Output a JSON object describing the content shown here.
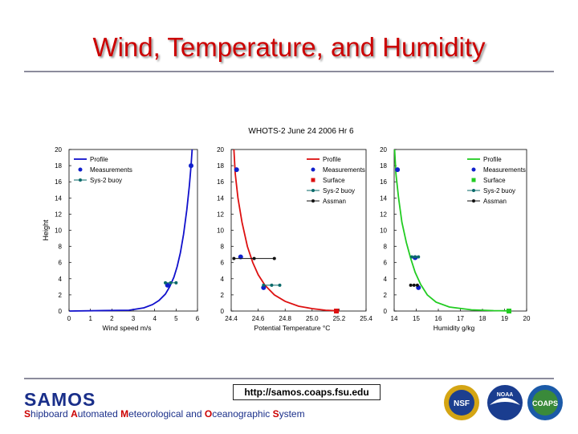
{
  "slide": {
    "title": "Wind, Temperature, and Humidity",
    "url": "http://samos.coaps.fsu.edu",
    "logo_name": "SAMOS",
    "tagline_parts": [
      {
        "initial": "S",
        "rest": "hipboard "
      },
      {
        "initial": "A",
        "rest": "utomated "
      },
      {
        "initial": "M",
        "rest": "eteorological and "
      },
      {
        "initial": "O",
        "rest": "ceanographic "
      },
      {
        "initial": "S",
        "rest": "ystem"
      }
    ],
    "partner_logos": [
      {
        "name": "nsf-logo",
        "text": "NSF"
      },
      {
        "name": "noaa-logo",
        "text": "NOAA"
      },
      {
        "name": "coaps-logo",
        "text": "COAPS"
      }
    ]
  },
  "figure_title": "WHOTS-2 June 24 2006 Hr 6",
  "colors": {
    "profile_wind": "#1010cc",
    "profile_red": "#dd1010",
    "profile_green": "#22cc22",
    "measurement": "#1020cc",
    "surface_red": "#dd1010",
    "surface_green": "#22cc22",
    "buoy": "#0a6a6a",
    "assman": "#111111"
  },
  "chart_data": [
    {
      "type": "line",
      "xlabel": "Wind speed m/s",
      "ylabel": "Height",
      "xlim": [
        0,
        6
      ],
      "ylim": [
        0,
        20
      ],
      "xticks": [
        "0",
        "1",
        "2",
        "3",
        "4",
        "5",
        "6"
      ],
      "yticks": [
        "0",
        "2",
        "4",
        "6",
        "8",
        "10",
        "12",
        "14",
        "16",
        "18",
        "20"
      ],
      "legend": {
        "position": "top-left",
        "entries": [
          "Profile",
          "Measurements",
          "Sys-2 buoy"
        ]
      },
      "series": [
        {
          "name": "Profile",
          "kind": "line",
          "color": "profile_wind",
          "points": [
            [
              0.02,
              0.0
            ],
            [
              2.8,
              0.1
            ],
            [
              3.5,
              0.4
            ],
            [
              3.9,
              0.8
            ],
            [
              4.2,
              1.3
            ],
            [
              4.5,
              2.1
            ],
            [
              4.7,
              3.0
            ],
            [
              4.9,
              4.2
            ],
            [
              5.05,
              5.5
            ],
            [
              5.2,
              7.2
            ],
            [
              5.35,
              9.5
            ],
            [
              5.5,
              12.5
            ],
            [
              5.62,
              15.5
            ],
            [
              5.7,
              18.0
            ],
            [
              5.75,
              20.0
            ]
          ]
        },
        {
          "name": "Measurements",
          "kind": "marker",
          "color": "measurement",
          "points": [
            [
              5.7,
              18.0
            ],
            [
              4.6,
              3.2
            ]
          ]
        },
        {
          "name": "Sys-2 buoy",
          "kind": "marker-line",
          "color": "buoy",
          "points": [
            [
              4.5,
              3.5
            ],
            [
              4.75,
              3.5
            ],
            [
              5.0,
              3.5
            ]
          ]
        }
      ]
    },
    {
      "type": "line",
      "xlabel": "Potential Temperature °C",
      "ylabel": "",
      "xlim": [
        24.4,
        25.4
      ],
      "ylim": [
        0,
        20
      ],
      "xticks": [
        "24.4",
        "24.6",
        "24.8",
        "25.0",
        "25.2",
        "25.4"
      ],
      "yticks": [
        "0",
        "2",
        "4",
        "6",
        "8",
        "10",
        "12",
        "14",
        "16",
        "18",
        "20"
      ],
      "legend": {
        "position": "top-right",
        "entries": [
          "Profile",
          "Measurements",
          "Surface",
          "Sys-2 buoy",
          "Assman"
        ]
      },
      "series": [
        {
          "name": "Profile",
          "kind": "line",
          "color": "profile_red",
          "points": [
            [
              24.42,
              20.0
            ],
            [
              24.43,
              17.0
            ],
            [
              24.45,
              14.0
            ],
            [
              24.48,
              11.0
            ],
            [
              24.52,
              8.0
            ],
            [
              24.56,
              6.0
            ],
            [
              24.6,
              4.5
            ],
            [
              24.65,
              3.2
            ],
            [
              24.72,
              2.0
            ],
            [
              24.8,
              1.2
            ],
            [
              24.9,
              0.6
            ],
            [
              25.0,
              0.3
            ],
            [
              25.1,
              0.1
            ],
            [
              25.2,
              0.02
            ]
          ]
        },
        {
          "name": "Measurements",
          "kind": "marker",
          "color": "measurement",
          "points": [
            [
              24.44,
              17.5
            ],
            [
              24.47,
              6.7
            ],
            [
              24.64,
              2.9
            ]
          ]
        },
        {
          "name": "Surface",
          "kind": "square",
          "color": "surface_red",
          "points": [
            [
              25.18,
              0.0
            ]
          ]
        },
        {
          "name": "Sys-2 buoy",
          "kind": "marker-line",
          "color": "buoy",
          "points": [
            [
              24.64,
              3.2
            ],
            [
              24.7,
              3.2
            ],
            [
              24.76,
              3.2
            ]
          ]
        },
        {
          "name": "Assman",
          "kind": "marker-line",
          "color": "assman",
          "points": [
            [
              24.42,
              6.5
            ],
            [
              24.57,
              6.5
            ],
            [
              24.72,
              6.5
            ]
          ]
        }
      ]
    },
    {
      "type": "line",
      "xlabel": "Humidity g/kg",
      "ylabel": "",
      "xlim": [
        14,
        20
      ],
      "ylim": [
        0,
        20
      ],
      "xticks": [
        "14",
        "15",
        "16",
        "17",
        "18",
        "19",
        "20"
      ],
      "yticks": [
        "0",
        "2",
        "4",
        "6",
        "8",
        "10",
        "12",
        "14",
        "16",
        "18",
        "20"
      ],
      "legend": {
        "position": "top-right",
        "entries": [
          "Profile",
          "Measurements",
          "Surface",
          "Sys-2 buoy",
          "Assman"
        ]
      },
      "series": [
        {
          "name": "Profile",
          "kind": "line",
          "color": "profile_green",
          "points": [
            [
              14.02,
              20.0
            ],
            [
              14.08,
              17.0
            ],
            [
              14.2,
              14.0
            ],
            [
              14.35,
              11.0
            ],
            [
              14.55,
              8.5
            ],
            [
              14.75,
              6.5
            ],
            [
              14.95,
              4.8
            ],
            [
              15.2,
              3.3
            ],
            [
              15.5,
              2.0
            ],
            [
              15.9,
              1.1
            ],
            [
              16.5,
              0.5
            ],
            [
              17.5,
              0.15
            ],
            [
              18.5,
              0.05
            ],
            [
              19.3,
              0.02
            ]
          ]
        },
        {
          "name": "Measurements",
          "kind": "marker",
          "color": "measurement",
          "points": [
            [
              14.15,
              17.5
            ],
            [
              14.95,
              6.6
            ],
            [
              15.1,
              2.9
            ]
          ]
        },
        {
          "name": "Surface",
          "kind": "square",
          "color": "surface_green",
          "points": [
            [
              19.2,
              0.0
            ]
          ]
        },
        {
          "name": "Sys-2 buoy",
          "kind": "marker-line",
          "color": "buoy",
          "points": [
            [
              14.8,
              6.7
            ],
            [
              14.95,
              6.7
            ],
            [
              15.1,
              6.7
            ]
          ]
        },
        {
          "name": "Assman",
          "kind": "marker-line",
          "color": "assman",
          "points": [
            [
              14.75,
              3.2
            ],
            [
              14.9,
              3.2
            ],
            [
              15.05,
              3.2
            ]
          ]
        }
      ]
    }
  ]
}
